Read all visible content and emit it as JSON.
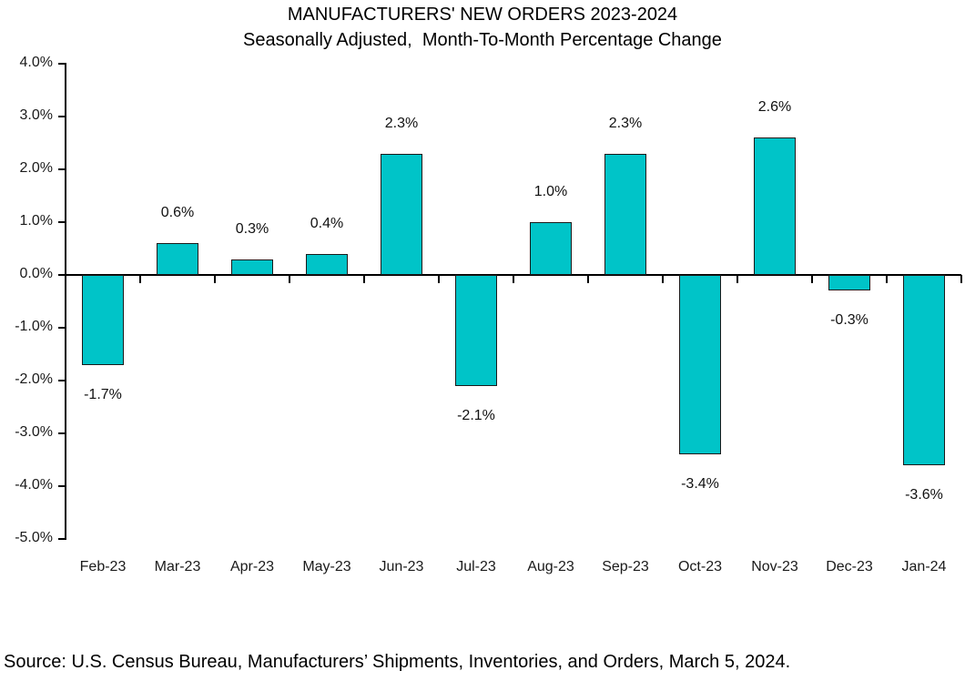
{
  "source_note": "Source: U.S. Census Bureau, Manufacturers’ Shipments, Inventories, and Orders, March 5, 2024.",
  "chart_data": {
    "type": "bar",
    "title": "MANUFACTURERS' NEW ORDERS 2023-2024",
    "subtitle": "Seasonally Adjusted,  Month-To-Month Percentage Change",
    "categories": [
      "Feb-23",
      "Mar-23",
      "Apr-23",
      "May-23",
      "Jun-23",
      "Jul-23",
      "Aug-23",
      "Sep-23",
      "Oct-23",
      "Nov-23",
      "Dec-23",
      "Jan-24"
    ],
    "values": [
      -1.7,
      0.6,
      0.3,
      0.4,
      2.3,
      -2.1,
      1.0,
      2.3,
      -3.4,
      2.6,
      -0.3,
      -3.6
    ],
    "value_labels": [
      "-1.7%",
      "0.6%",
      "0.3%",
      "0.4%",
      "2.3%",
      "-2.1%",
      "1.0%",
      "2.3%",
      "-3.4%",
      "2.6%",
      "-0.3%",
      "-3.6%"
    ],
    "xlabel": "",
    "ylabel": "",
    "ylim": [
      -5,
      4
    ],
    "ytick_step": 1.0,
    "ytick_labels": [
      "4.0%",
      "3.0%",
      "2.0%",
      "1.0%",
      "0.0%",
      "-1.0%",
      "-2.0%",
      "-3.0%",
      "-4.0%",
      "-5.0%"
    ],
    "grid": false,
    "legend": "none",
    "bar_color": "#00C4C8",
    "bar_border_color": "#1a1a1a",
    "axis_color": "#000000"
  }
}
